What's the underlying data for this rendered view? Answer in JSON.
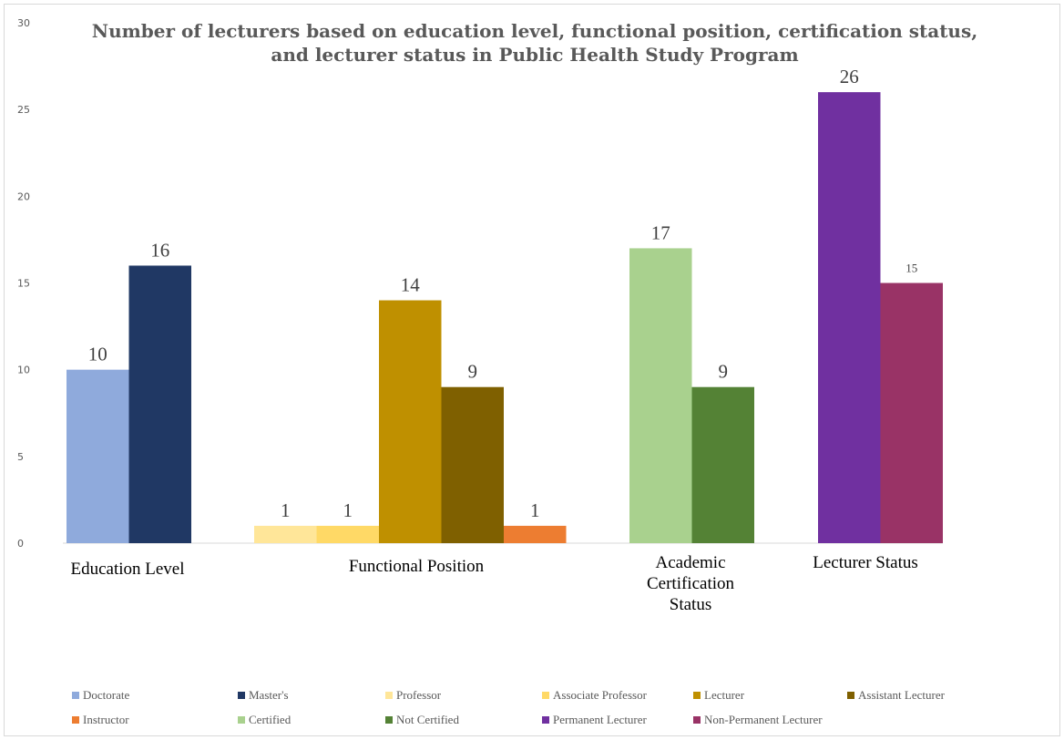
{
  "chart_data": {
    "type": "bar",
    "title_lines": [
      "Number of lecturers based on education level, functional position, certification status,",
      "and lecturer status in Public Health Study Program"
    ],
    "ylim": [
      0,
      30
    ],
    "y_ticks": [
      0,
      5,
      10,
      15,
      20,
      25,
      30
    ],
    "grid": false,
    "legend_position": "bottom",
    "groups": [
      {
        "category_lines": [
          "Education Level"
        ],
        "bars": [
          {
            "series": "Doctorate",
            "value": 10,
            "color": "#8faadc",
            "label": "10"
          },
          {
            "series": "Master's",
            "value": 16,
            "color": "#203864",
            "label": "16"
          }
        ]
      },
      {
        "category_lines": [
          "Functional Position"
        ],
        "bars": [
          {
            "series": "Professor",
            "value": 1,
            "color": "#ffe699",
            "label": "1"
          },
          {
            "series": "Associate Professor",
            "value": 1,
            "color": "#ffd966",
            "label": "1"
          },
          {
            "series": "Lecturer",
            "value": 14,
            "color": "#bf9000",
            "label": "14"
          },
          {
            "series": "Assistant Lecturer",
            "value": 9,
            "color": "#7f6000",
            "label": "9"
          },
          {
            "series": "Instructor",
            "value": 1,
            "color": "#ed7d31",
            "label": "1"
          }
        ]
      },
      {
        "category_lines": [
          "Academic",
          "Certification",
          "Status"
        ],
        "bars": [
          {
            "series": "Certified",
            "value": 17,
            "color": "#a9d18e",
            "label": "17"
          },
          {
            "series": "Not Certified",
            "value": 9,
            "color": "#548235",
            "label": "9"
          }
        ]
      },
      {
        "category_lines": [
          "Lecturer Status"
        ],
        "bars": [
          {
            "series": "Permanent Lecturer",
            "value": 26,
            "color": "#7030a0",
            "label": "26"
          },
          {
            "series": "Non-Permanent Lecturer",
            "value": 15,
            "color": "#993366",
            "label": "15",
            "small": true
          }
        ]
      }
    ],
    "legend": [
      {
        "name": "Doctorate",
        "color": "#8faadc"
      },
      {
        "name": "Master's",
        "color": "#203864"
      },
      {
        "name": "Professor",
        "color": "#ffe699"
      },
      {
        "name": "Associate Professor",
        "color": "#ffd966"
      },
      {
        "name": "Lecturer",
        "color": "#bf9000"
      },
      {
        "name": "Assistant Lecturer",
        "color": "#7f6000"
      },
      {
        "name": "Instructor",
        "color": "#ed7d31"
      },
      {
        "name": "Certified",
        "color": "#a9d18e"
      },
      {
        "name": "Not Certified",
        "color": "#548235"
      },
      {
        "name": "Permanent Lecturer",
        "color": "#7030a0"
      },
      {
        "name": "Non-Permanent Lecturer",
        "color": "#993366"
      }
    ]
  }
}
